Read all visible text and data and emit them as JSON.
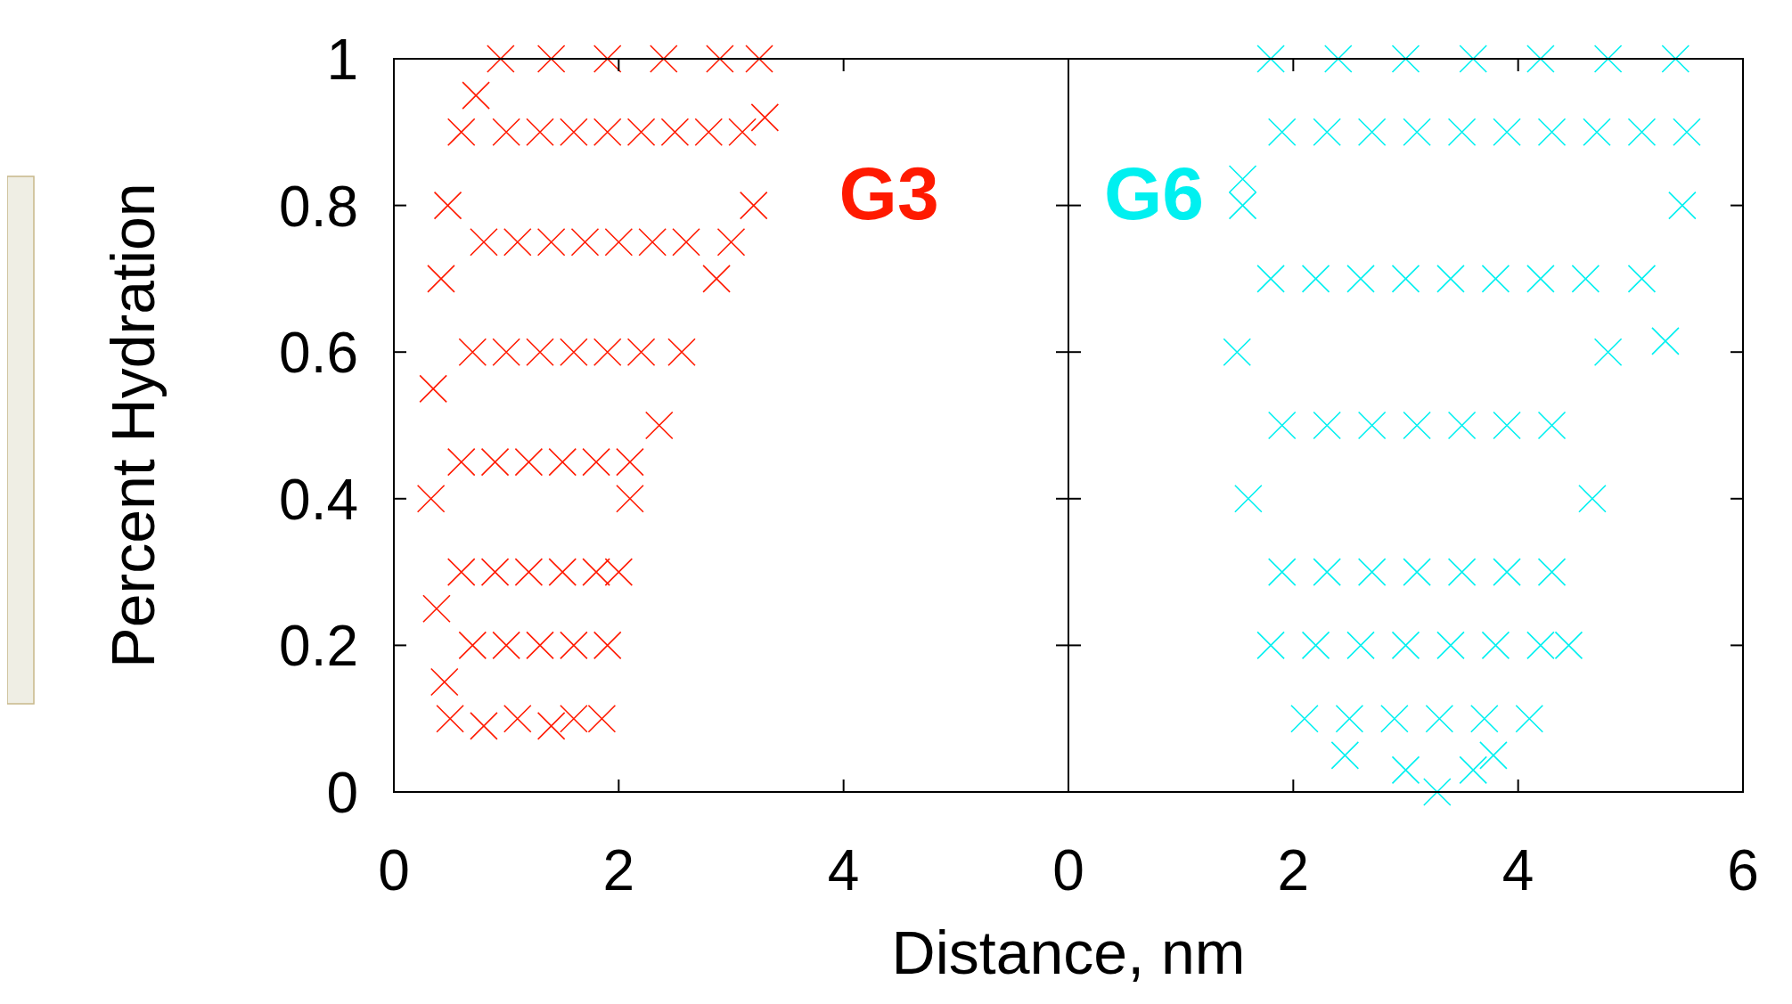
{
  "chart_data": [
    {
      "type": "scatter",
      "xlabel": "Distance, nm",
      "ylabel": "Percent Hydration",
      "xlim": [
        0,
        6
      ],
      "ylim": [
        0,
        1
      ],
      "xticks": [
        0,
        2,
        4,
        {
          "value": 6,
          "label": null
        }
      ],
      "yticks": [
        0,
        0.2,
        0.4,
        0.6,
        0.8,
        1
      ],
      "grid": false,
      "legend": false,
      "marker": "cross",
      "series": [
        {
          "name": "G3",
          "color": "#ff1a00",
          "x": [
            0.5,
            0.45,
            0.38,
            0.33,
            0.35,
            0.42,
            0.48,
            0.6,
            0.73,
            0.95,
            1.4,
            1.9,
            2.4,
            2.9,
            3.25,
            3.3,
            3.2,
            3.0,
            2.87,
            2.56,
            2.36,
            2.1,
            2.0,
            1.9,
            1.85,
            0.8,
            1.1,
            1.4,
            1.6,
            0.7,
            1.0,
            1.3,
            1.6,
            0.6,
            0.9,
            1.2,
            1.5,
            1.8,
            0.6,
            0.9,
            1.2,
            1.5,
            1.8,
            2.1,
            0.7,
            1.0,
            1.3,
            1.6,
            1.9,
            2.2,
            0.8,
            1.1,
            1.4,
            1.7,
            2.0,
            2.3,
            2.6,
            1.0,
            1.3,
            1.6,
            1.9,
            2.2,
            2.5,
            2.8,
            3.1
          ],
          "values": [
            0.1,
            0.15,
            0.25,
            0.4,
            0.55,
            0.7,
            0.8,
            0.9,
            0.95,
            1,
            1,
            1,
            1,
            1,
            1,
            0.92,
            0.8,
            0.75,
            0.7,
            0.6,
            0.5,
            0.4,
            0.3,
            0.2,
            0.1,
            0.09,
            0.1,
            0.09,
            0.1,
            0.2,
            0.2,
            0.2,
            0.2,
            0.3,
            0.3,
            0.3,
            0.3,
            0.3,
            0.45,
            0.45,
            0.45,
            0.45,
            0.45,
            0.45,
            0.6,
            0.6,
            0.6,
            0.6,
            0.6,
            0.6,
            0.75,
            0.75,
            0.75,
            0.75,
            0.75,
            0.75,
            0.75,
            0.9,
            0.9,
            0.9,
            0.9,
            0.9,
            0.9,
            0.9,
            0.9
          ]
        }
      ]
    },
    {
      "type": "scatter",
      "xlim": [
        0,
        6
      ],
      "ylim": [
        0,
        1
      ],
      "xticks": [
        0,
        2,
        4,
        6
      ],
      "yticks": [
        {
          "value": 0,
          "label": null
        },
        {
          "value": 0.2,
          "label": null
        },
        {
          "value": 0.4,
          "label": null
        },
        {
          "value": 0.6,
          "label": null
        },
        {
          "value": 0.8,
          "label": null
        },
        {
          "value": 1,
          "label": null
        }
      ],
      "tick_labels": "x",
      "grid": false,
      "legend": false,
      "marker": "cross",
      "series": [
        {
          "name": "G6",
          "color": "#00f0f0",
          "x": [
            3.28,
            3.0,
            3.6,
            2.46,
            3.78,
            2.1,
            1.8,
            1.6,
            1.5,
            1.55,
            1.8,
            4.1,
            4.45,
            4.66,
            4.8,
            5.1,
            5.46,
            5.5,
            5.4,
            2.4,
            3.0,
            3.6,
            4.2,
            4.8,
            5.31,
            1.55,
            2.5,
            2.9,
            3.3,
            3.7,
            2.2,
            2.6,
            3.0,
            3.4,
            3.8,
            4.2,
            1.9,
            2.3,
            2.7,
            3.1,
            3.5,
            3.9,
            4.3,
            1.9,
            2.3,
            2.7,
            3.1,
            3.5,
            3.9,
            4.3,
            1.8,
            2.2,
            2.6,
            3.0,
            3.4,
            3.8,
            4.2,
            4.6,
            1.9,
            2.3,
            2.7,
            3.1,
            3.5,
            3.9,
            4.3,
            4.7,
            5.1
          ],
          "values": [
            0,
            0.03,
            0.03,
            0.05,
            0.05,
            0.1,
            0.2,
            0.4,
            0.6,
            0.8,
            1,
            0.1,
            0.2,
            0.4,
            0.6,
            0.7,
            0.8,
            0.9,
            1,
            1,
            1,
            1,
            1,
            1,
            0.615,
            0.836,
            0.1,
            0.1,
            0.1,
            0.1,
            0.2,
            0.2,
            0.2,
            0.2,
            0.2,
            0.2,
            0.3,
            0.3,
            0.3,
            0.3,
            0.3,
            0.3,
            0.3,
            0.5,
            0.5,
            0.5,
            0.5,
            0.5,
            0.5,
            0.5,
            0.7,
            0.7,
            0.7,
            0.7,
            0.7,
            0.7,
            0.7,
            0.7,
            0.9,
            0.9,
            0.9,
            0.9,
            0.9,
            0.9,
            0.9,
            0.9,
            0.9
          ]
        }
      ]
    }
  ]
}
